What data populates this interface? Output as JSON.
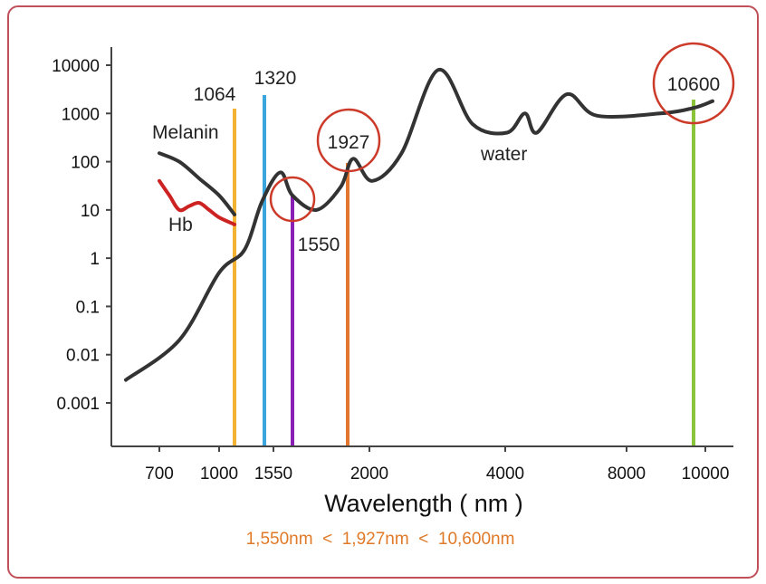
{
  "chart_data": {
    "type": "line",
    "xlabel": "Wavelength ( nm )",
    "ylabel": "",
    "y_scale": "log",
    "ylim": [
      0.001,
      10000
    ],
    "y_ticks": [
      "10000",
      "1000",
      "100",
      "10",
      "1",
      "0.1",
      "0.01",
      "0.001"
    ],
    "x_ticks": [
      "700",
      "1000",
      "1550",
      "2000",
      "4000",
      "8000",
      "10000"
    ],
    "series": [
      {
        "name": "water",
        "color": "#333333",
        "points": [
          [
            "600",
            0.003
          ],
          [
            "800",
            0.02
          ],
          [
            "1000",
            0.5
          ],
          [
            "1150",
            1.5
          ],
          [
            "1300",
            15
          ],
          [
            "1450",
            60
          ],
          [
            "1550",
            20
          ],
          [
            "1700",
            10
          ],
          [
            "1850",
            30
          ],
          [
            "1927",
            115
          ],
          [
            "2100",
            40
          ],
          [
            "2500",
            150
          ],
          [
            "3000",
            8000
          ],
          [
            "3500",
            600
          ],
          [
            "4000",
            400
          ],
          [
            "4600",
            1000
          ],
          [
            "5000",
            400
          ],
          [
            "6000",
            2500
          ],
          [
            "7000",
            900
          ],
          [
            "9000",
            1000
          ],
          [
            "10600",
            1300
          ],
          [
            "11000",
            1800
          ]
        ]
      },
      {
        "name": "Melanin",
        "color": "#333333",
        "points": [
          [
            "700",
            150
          ],
          [
            "800",
            100
          ],
          [
            "900",
            45
          ],
          [
            "1000",
            20
          ],
          [
            "1064",
            8
          ]
        ]
      },
      {
        "name": "Hb",
        "color": "#cc2222",
        "points": [
          [
            "700",
            40
          ],
          [
            "750",
            20
          ],
          [
            "800",
            10
          ],
          [
            "850",
            12
          ],
          [
            "900",
            14
          ],
          [
            "950",
            10
          ],
          [
            "1000",
            7
          ],
          [
            "1064",
            5
          ]
        ]
      }
    ],
    "laser_lines": [
      {
        "label": "1064",
        "wavelength": 1064,
        "color": "#f2b233",
        "circled": false
      },
      {
        "label": "1320",
        "wavelength": 1320,
        "color": "#3aa6dd",
        "circled": false
      },
      {
        "label": "1550",
        "wavelength": 1550,
        "color": "#8a1fb5",
        "circled": true
      },
      {
        "label": "1927",
        "wavelength": 1927,
        "color": "#e2762f",
        "circled": true
      },
      {
        "label": "10600",
        "wavelength": 10600,
        "color": "#8ac43a",
        "circled": true
      }
    ],
    "annotations": [
      "Melanin",
      "Hb",
      "water"
    ],
    "footer": "1,550nm  <  1,927nm  <  10,600nm",
    "grid": false
  }
}
